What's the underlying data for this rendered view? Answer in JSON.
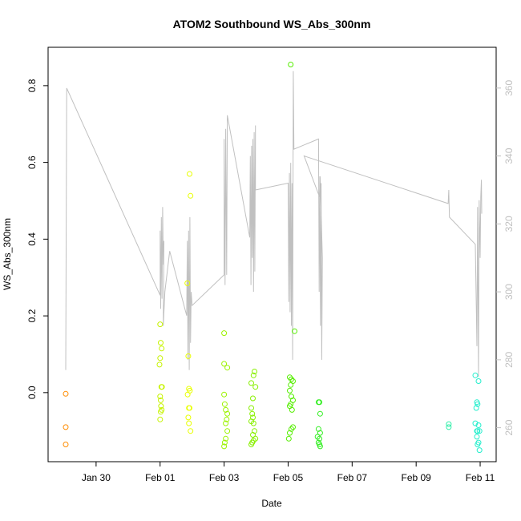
{
  "chart_data": {
    "type": "scatter",
    "title": "ATOM2 Southbound WS_Abs_300nm",
    "xlabel": "Date",
    "ylabel": "WS_Abs_300nm",
    "x_tick_labels": [
      "Jan 30",
      "Feb 01",
      "Feb 03",
      "Feb 05",
      "Feb 07",
      "Feb 09",
      "Feb 11"
    ],
    "xlim_days": [
      -2.5,
      11.5
    ],
    "ylim": [
      -0.18,
      0.9
    ],
    "y_ticks": [
      0.0,
      0.2,
      0.4,
      0.6,
      0.8
    ],
    "y_tick_labels": [
      "0.0",
      "0.2",
      "0.4",
      "0.6",
      "0.8"
    ],
    "y2_ticks": [
      260,
      280,
      300,
      320,
      340,
      360
    ],
    "y2_tick_labels": [
      "260",
      "280",
      "300",
      "320",
      "340",
      "360"
    ],
    "y2lim": [
      250,
      372
    ],
    "grid": false,
    "colors": {
      "line": "#c0c0c0",
      "axis": "#000000",
      "right_axis": "#c0c0c0"
    },
    "series": [
      {
        "kind": "points",
        "color": "#ff8c00",
        "points": [
          [
            -1.95,
            -0.003
          ],
          [
            -1.95,
            -0.09
          ],
          [
            -1.95,
            -0.135
          ]
        ]
      },
      {
        "kind": "points",
        "color": "#c6f300",
        "points": [
          [
            1.0,
            0.178
          ],
          [
            1.02,
            0.13
          ],
          [
            1.05,
            0.115
          ],
          [
            1.0,
            0.09
          ],
          [
            0.98,
            0.073
          ],
          [
            1.04,
            0.015
          ],
          [
            1.06,
            0.015
          ],
          [
            1.0,
            -0.01
          ],
          [
            1.02,
            -0.02
          ],
          [
            1.03,
            -0.035
          ],
          [
            1.05,
            -0.045
          ],
          [
            1.02,
            -0.05
          ],
          [
            1.0,
            -0.07
          ]
        ]
      },
      {
        "kind": "points",
        "color": "#e8ff00",
        "points": [
          [
            1.92,
            0.57
          ],
          [
            1.95,
            0.513
          ],
          [
            1.85,
            0.285
          ],
          [
            1.88,
            0.095
          ],
          [
            1.9,
            0.01
          ],
          [
            1.93,
            0.005
          ],
          [
            1.86,
            -0.005
          ],
          [
            1.9,
            -0.04
          ],
          [
            1.92,
            -0.04
          ],
          [
            1.88,
            -0.065
          ],
          [
            1.9,
            -0.08
          ],
          [
            1.95,
            -0.1
          ]
        ]
      },
      {
        "kind": "points",
        "color": "#9cf300",
        "points": [
          [
            3.0,
            0.155
          ],
          [
            3.0,
            0.075
          ],
          [
            3.1,
            0.065
          ],
          [
            3.0,
            -0.005
          ],
          [
            3.02,
            -0.03
          ],
          [
            3.05,
            -0.045
          ],
          [
            3.1,
            -0.055
          ],
          [
            3.08,
            -0.07
          ],
          [
            3.05,
            -0.08
          ],
          [
            3.1,
            -0.1
          ],
          [
            3.05,
            -0.12
          ],
          [
            3.02,
            -0.13
          ],
          [
            3.0,
            -0.14
          ]
        ]
      },
      {
        "kind": "points",
        "color": "#88f000",
        "points": [
          [
            3.95,
            0.055
          ],
          [
            3.92,
            0.045
          ],
          [
            3.85,
            0.025
          ],
          [
            3.98,
            0.015
          ],
          [
            3.9,
            -0.015
          ],
          [
            3.85,
            -0.04
          ],
          [
            3.88,
            -0.055
          ],
          [
            3.9,
            -0.065
          ],
          [
            3.85,
            -0.075
          ],
          [
            3.92,
            -0.08
          ],
          [
            3.95,
            -0.1
          ],
          [
            3.9,
            -0.11
          ],
          [
            3.98,
            -0.12
          ],
          [
            3.92,
            -0.125
          ],
          [
            3.88,
            -0.13
          ],
          [
            3.85,
            -0.135
          ]
        ]
      },
      {
        "kind": "points",
        "color": "#55ee00",
        "points": [
          [
            5.08,
            0.855
          ],
          [
            5.2,
            0.16
          ],
          [
            5.05,
            0.04
          ],
          [
            5.1,
            0.035
          ],
          [
            5.15,
            0.03
          ],
          [
            5.08,
            0.02
          ],
          [
            5.05,
            0.005
          ],
          [
            5.1,
            -0.01
          ],
          [
            5.15,
            -0.02
          ],
          [
            5.08,
            -0.03
          ],
          [
            5.05,
            -0.035
          ],
          [
            5.12,
            -0.045
          ],
          [
            5.15,
            -0.09
          ],
          [
            5.1,
            -0.095
          ],
          [
            5.05,
            -0.105
          ],
          [
            5.02,
            -0.12
          ]
        ]
      },
      {
        "kind": "points",
        "color": "#33ee22",
        "points": [
          [
            5.95,
            -0.025
          ],
          [
            5.98,
            -0.025
          ],
          [
            6.0,
            -0.055
          ],
          [
            5.95,
            -0.095
          ],
          [
            6.0,
            -0.105
          ],
          [
            5.92,
            -0.115
          ],
          [
            5.98,
            -0.12
          ],
          [
            5.95,
            -0.13
          ],
          [
            5.98,
            -0.135
          ],
          [
            6.0,
            -0.14
          ]
        ]
      },
      {
        "kind": "points",
        "color": "#33eeaa",
        "points": [
          [
            10.02,
            -0.082
          ],
          [
            10.02,
            -0.09
          ]
        ]
      },
      {
        "kind": "points",
        "color": "#22eecc",
        "points": [
          [
            10.85,
            0.045
          ],
          [
            10.95,
            0.03
          ],
          [
            10.9,
            -0.025
          ],
          [
            10.92,
            -0.03
          ],
          [
            10.88,
            -0.04
          ],
          [
            10.85,
            -0.08
          ],
          [
            10.95,
            -0.085
          ],
          [
            10.9,
            -0.1
          ],
          [
            10.92,
            -0.1
          ],
          [
            10.98,
            -0.1
          ],
          [
            10.9,
            -0.115
          ],
          [
            10.95,
            -0.13
          ],
          [
            10.92,
            -0.135
          ],
          [
            10.98,
            -0.15
          ]
        ]
      },
      {
        "kind": "line",
        "axis": "right",
        "color": "#c0c0c0",
        "points": [
          [
            -1.95,
            277
          ],
          [
            -1.92,
            360
          ],
          [
            1.0,
            299
          ],
          [
            1.0,
            318
          ],
          [
            1.02,
            295
          ],
          [
            1.04,
            322
          ],
          [
            1.06,
            298
          ],
          [
            1.08,
            325
          ],
          [
            1.1,
            308
          ],
          [
            1.12,
            315
          ],
          [
            1.1,
            290
          ],
          [
            1.15,
            300
          ],
          [
            1.3,
            312
          ],
          [
            1.83,
            293
          ],
          [
            1.85,
            315
          ],
          [
            1.87,
            280
          ],
          [
            1.89,
            318
          ],
          [
            1.91,
            277
          ],
          [
            1.93,
            322
          ],
          [
            1.95,
            285
          ],
          [
            1.97,
            300
          ],
          [
            2.0,
            296
          ],
          [
            3.0,
            305
          ],
          [
            3.0,
            345
          ],
          [
            3.03,
            302
          ],
          [
            3.05,
            348
          ],
          [
            3.08,
            305
          ],
          [
            3.1,
            352
          ],
          [
            3.8,
            316
          ],
          [
            3.82,
            340
          ],
          [
            3.84,
            302
          ],
          [
            3.86,
            343
          ],
          [
            3.88,
            310
          ],
          [
            3.9,
            345
          ],
          [
            3.92,
            300
          ],
          [
            3.94,
            347
          ],
          [
            3.96,
            306
          ],
          [
            3.98,
            349
          ],
          [
            3.98,
            330
          ],
          [
            5.0,
            332
          ],
          [
            5.02,
            297
          ],
          [
            5.04,
            335
          ],
          [
            5.06,
            294
          ],
          [
            5.08,
            338
          ],
          [
            5.1,
            290
          ],
          [
            5.12,
            332
          ],
          [
            5.14,
            280
          ],
          [
            5.16,
            365
          ],
          [
            5.18,
            342
          ],
          [
            5.95,
            345
          ],
          [
            5.97,
            300
          ],
          [
            5.99,
            334
          ],
          [
            6.01,
            290
          ],
          [
            6.03,
            332
          ],
          [
            6.05,
            280
          ],
          [
            6.07,
            310
          ],
          [
            6.0,
            334
          ],
          [
            5.98,
            328
          ],
          [
            5.5,
            340
          ],
          [
            10.0,
            326
          ],
          [
            10.02,
            330
          ],
          [
            10.04,
            322
          ],
          [
            10.85,
            314
          ],
          [
            10.9,
            284
          ],
          [
            10.92,
            325
          ],
          [
            10.95,
            275
          ],
          [
            10.97,
            327
          ],
          [
            11.0,
            310
          ],
          [
            11.02,
            328
          ],
          [
            11.04,
            333
          ],
          [
            11.05,
            323
          ]
        ]
      }
    ]
  }
}
